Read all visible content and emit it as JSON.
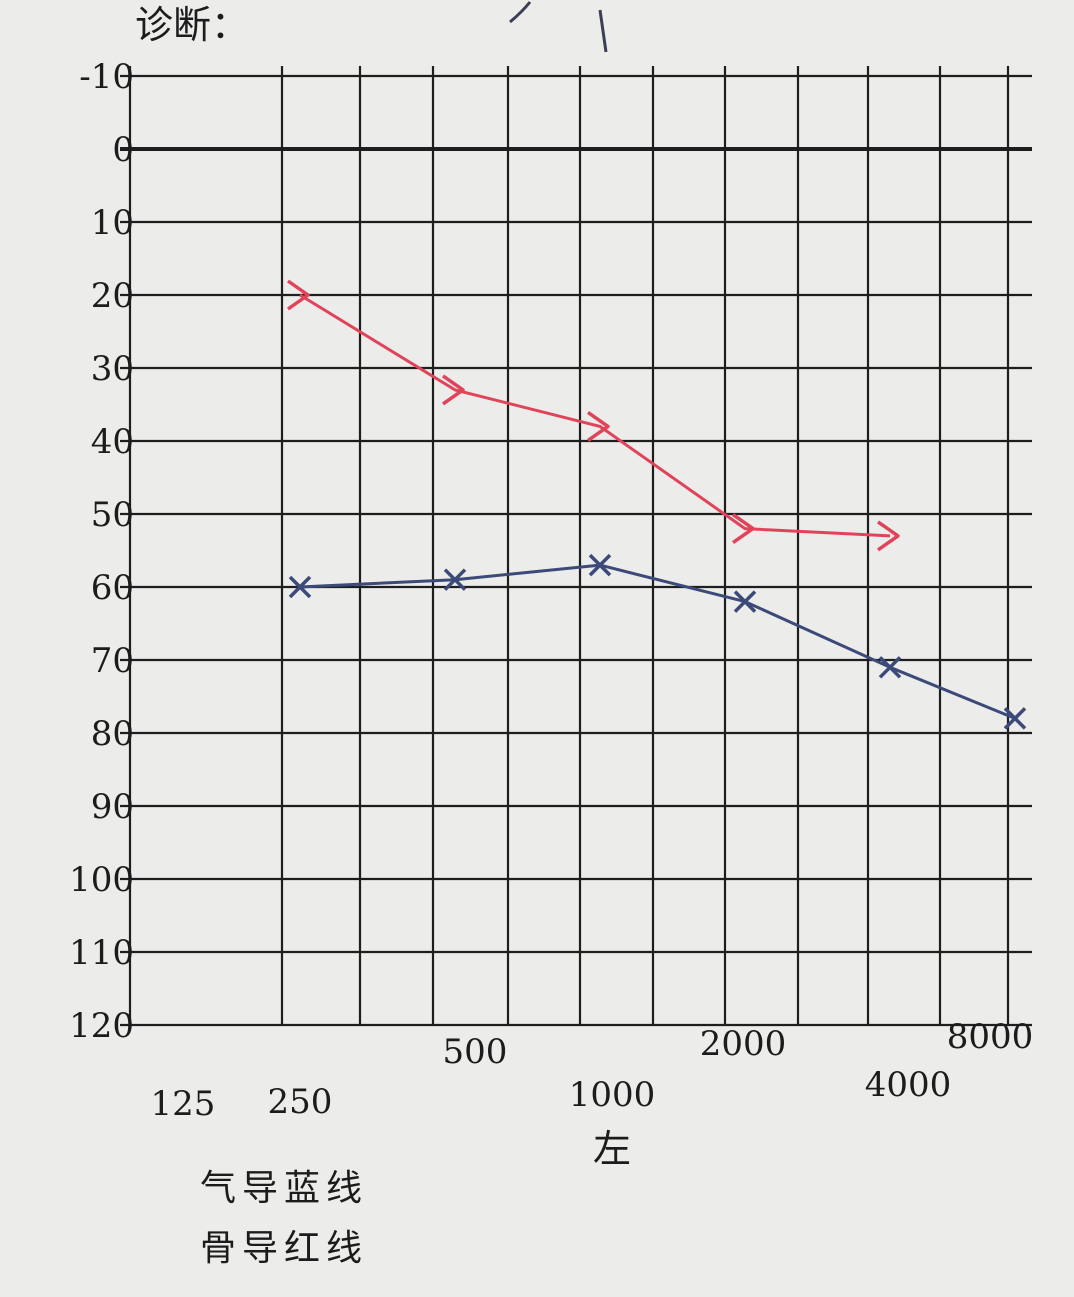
{
  "header": {
    "diagnosis_label": "诊断："
  },
  "ear_label": "左",
  "legend": {
    "air_line": "气导蓝线",
    "bone_line": "骨导红线"
  },
  "colors": {
    "air": "#3c4a7a",
    "bone": "#e0445a",
    "grid": "#1e1e1e",
    "paper": "#ececea"
  },
  "chart_data": {
    "type": "line",
    "ylim": [
      -10,
      120
    ],
    "y_ticks": [
      -10,
      0,
      10,
      20,
      30,
      40,
      50,
      60,
      70,
      80,
      90,
      100,
      110,
      120
    ],
    "y_tick_labels": [
      "-10",
      "0",
      "10",
      "20",
      "30",
      "40",
      "50",
      "60",
      "70",
      "80",
      "90",
      "100",
      "110",
      "120"
    ],
    "x_tick_labels": [
      "125",
      "250",
      "500",
      "1000",
      "2000",
      "4000",
      "8000"
    ],
    "series": [
      {
        "name": "气导蓝线",
        "x": [
          250,
          500,
          1000,
          2000,
          4000,
          8000
        ],
        "y": [
          60,
          59,
          57,
          62,
          71,
          78
        ]
      },
      {
        "name": "骨导红线",
        "x": [
          250,
          500,
          1000,
          2000,
          4000
        ],
        "y": [
          20,
          33,
          38,
          52,
          53
        ]
      }
    ]
  }
}
